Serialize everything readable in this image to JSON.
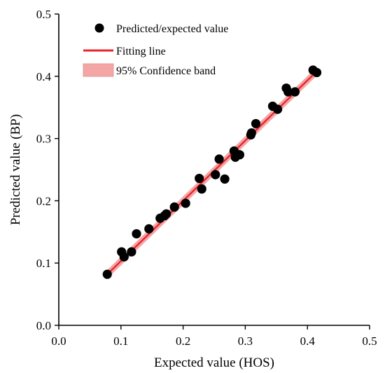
{
  "chart_data": {
    "type": "scatter",
    "xlabel": "Expected value (HOS)",
    "ylabel": "Predicted value (BP)",
    "xlim": [
      0.0,
      0.5
    ],
    "ylim": [
      0.0,
      0.5
    ],
    "x_ticks": [
      "0.0",
      "0.1",
      "0.2",
      "0.3",
      "0.4",
      "0.5"
    ],
    "y_ticks": [
      "0.0",
      "0.1",
      "0.2",
      "0.3",
      "0.4",
      "0.5"
    ],
    "grid": false,
    "legend_position": "top-left",
    "colors": {
      "points": "#000000",
      "fit_line": "#e8252b",
      "band": "#f4a6a6"
    },
    "legend": [
      {
        "label": "Predicted/expected value",
        "kind": "marker"
      },
      {
        "label": "Fitting line",
        "kind": "line"
      },
      {
        "label": "95% Confidence band",
        "kind": "band"
      }
    ],
    "series": [
      {
        "name": "Predicted/expected value",
        "points": [
          [
            0.078,
            0.082
          ],
          [
            0.101,
            0.118
          ],
          [
            0.105,
            0.11
          ],
          [
            0.117,
            0.118
          ],
          [
            0.125,
            0.147
          ],
          [
            0.145,
            0.155
          ],
          [
            0.163,
            0.172
          ],
          [
            0.17,
            0.176
          ],
          [
            0.173,
            0.179
          ],
          [
            0.186,
            0.19
          ],
          [
            0.204,
            0.196
          ],
          [
            0.226,
            0.236
          ],
          [
            0.23,
            0.219
          ],
          [
            0.252,
            0.242
          ],
          [
            0.258,
            0.267
          ],
          [
            0.267,
            0.235
          ],
          [
            0.282,
            0.28
          ],
          [
            0.284,
            0.27
          ],
          [
            0.291,
            0.274
          ],
          [
            0.309,
            0.306
          ],
          [
            0.31,
            0.309
          ],
          [
            0.317,
            0.324
          ],
          [
            0.344,
            0.352
          ],
          [
            0.352,
            0.347
          ],
          [
            0.366,
            0.381
          ],
          [
            0.369,
            0.375
          ],
          [
            0.38,
            0.375
          ],
          [
            0.409,
            0.41
          ],
          [
            0.415,
            0.406
          ]
        ]
      },
      {
        "name": "Fitting line",
        "line": [
          [
            0.078,
            0.082
          ],
          [
            0.415,
            0.408
          ]
        ]
      }
    ]
  }
}
